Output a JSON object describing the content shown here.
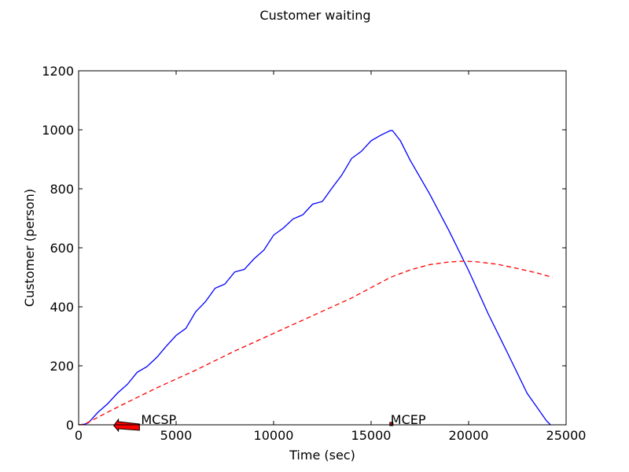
{
  "chart_data": {
    "type": "line",
    "title": "Customer waiting",
    "xlabel": "Time (sec)",
    "ylabel": "Customer (person)",
    "xlim": [
      0,
      25000
    ],
    "ylim": [
      0,
      1200
    ],
    "xticks": [
      0,
      5000,
      10000,
      15000,
      20000,
      25000
    ],
    "yticks": [
      0,
      200,
      400,
      600,
      800,
      1000,
      1200
    ],
    "grid": false,
    "series": [
      {
        "color": "#0000ff",
        "style": "solid",
        "x": [
          0,
          300,
          500,
          1000,
          1500,
          2000,
          2500,
          3000,
          3500,
          4000,
          4500,
          5000,
          5500,
          6000,
          6500,
          7000,
          7500,
          8000,
          8500,
          9000,
          9500,
          10000,
          10500,
          11000,
          11500,
          12000,
          12500,
          13000,
          13500,
          14000,
          14500,
          15000,
          15500,
          16000,
          16100,
          16500,
          17000,
          18000,
          19000,
          20000,
          21000,
          22000,
          23000,
          24000,
          24200
        ],
        "y": [
          0,
          2,
          10,
          40,
          75,
          105,
          140,
          175,
          200,
          225,
          270,
          300,
          330,
          380,
          420,
          460,
          480,
          515,
          530,
          560,
          595,
          640,
          670,
          695,
          715,
          745,
          760,
          800,
          850,
          900,
          930,
          960,
          985,
          995,
          1000,
          960,
          900,
          780,
          660,
          520,
          380,
          240,
          110,
          10,
          0
        ]
      },
      {
        "color": "#ff0000",
        "style": "dashed",
        "x": [
          0,
          300,
          2000,
          4000,
          6000,
          8000,
          10000,
          12000,
          14000,
          16000,
          17000,
          18000,
          19000,
          19800,
          20500,
          21500,
          22500,
          23500,
          24300
        ],
        "y": [
          0,
          2,
          60,
          125,
          185,
          250,
          310,
          370,
          430,
          500,
          525,
          543,
          552,
          555,
          552,
          544,
          530,
          515,
          500
        ]
      }
    ],
    "annotations": [
      {
        "text": "MCSP",
        "x": 3200,
        "y": 0,
        "arrow_to_x": 1800,
        "arrow_to_y": 0
      },
      {
        "text": "MCEP",
        "x": 16000,
        "y": 0
      }
    ]
  }
}
